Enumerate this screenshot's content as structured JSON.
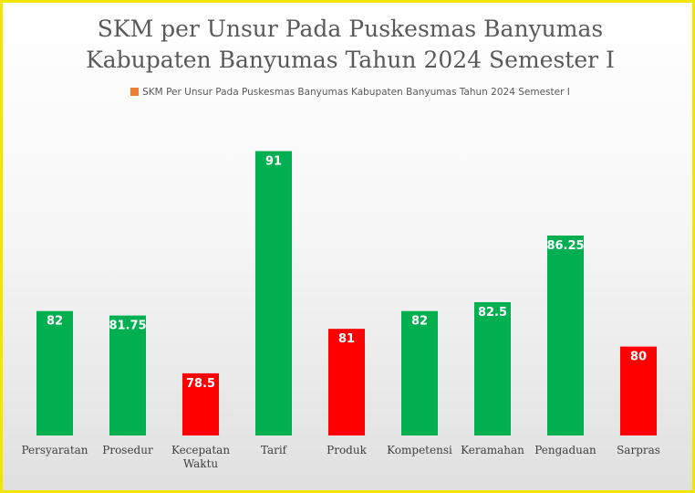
{
  "chart_data": {
    "type": "bar",
    "title_lines": [
      "SKM per Unsur Pada Puskesmas Banyumas",
      "Kabupaten Banyumas Tahun 2024 Semester I"
    ],
    "legend": {
      "position": "top",
      "entries": [
        {
          "label": "SKM Per Unsur Pada Puskesmas Banyumas Kabupaten Banyumas Tahun 2024 Semester I",
          "color": "#ed7d31"
        }
      ]
    },
    "categories": [
      [
        "Persyaratan"
      ],
      [
        "Prosedur"
      ],
      [
        "Kecepatan",
        "Waktu"
      ],
      [
        "Tarif"
      ],
      [
        "Produk"
      ],
      [
        "Kompetensi"
      ],
      [
        "Keramahan"
      ],
      [
        "Pengaduan"
      ],
      [
        "Sarpras"
      ]
    ],
    "values": [
      82,
      81.75,
      78.5,
      91,
      81,
      82,
      82.5,
      86.25,
      80
    ],
    "data_labels": [
      "82",
      "81.75",
      "78.5",
      "91",
      "81",
      "82",
      "82.5",
      "86.25",
      "80"
    ],
    "bar_colors": [
      "#00b050",
      "#00b050",
      "#ff0000",
      "#00b050",
      "#ff0000",
      "#00b050",
      "#00b050",
      "#00b050",
      "#ff0000"
    ],
    "xlabel": "",
    "ylabel": "",
    "ylim": [
      75,
      92
    ],
    "grid": false,
    "y_axis_visible": false
  }
}
